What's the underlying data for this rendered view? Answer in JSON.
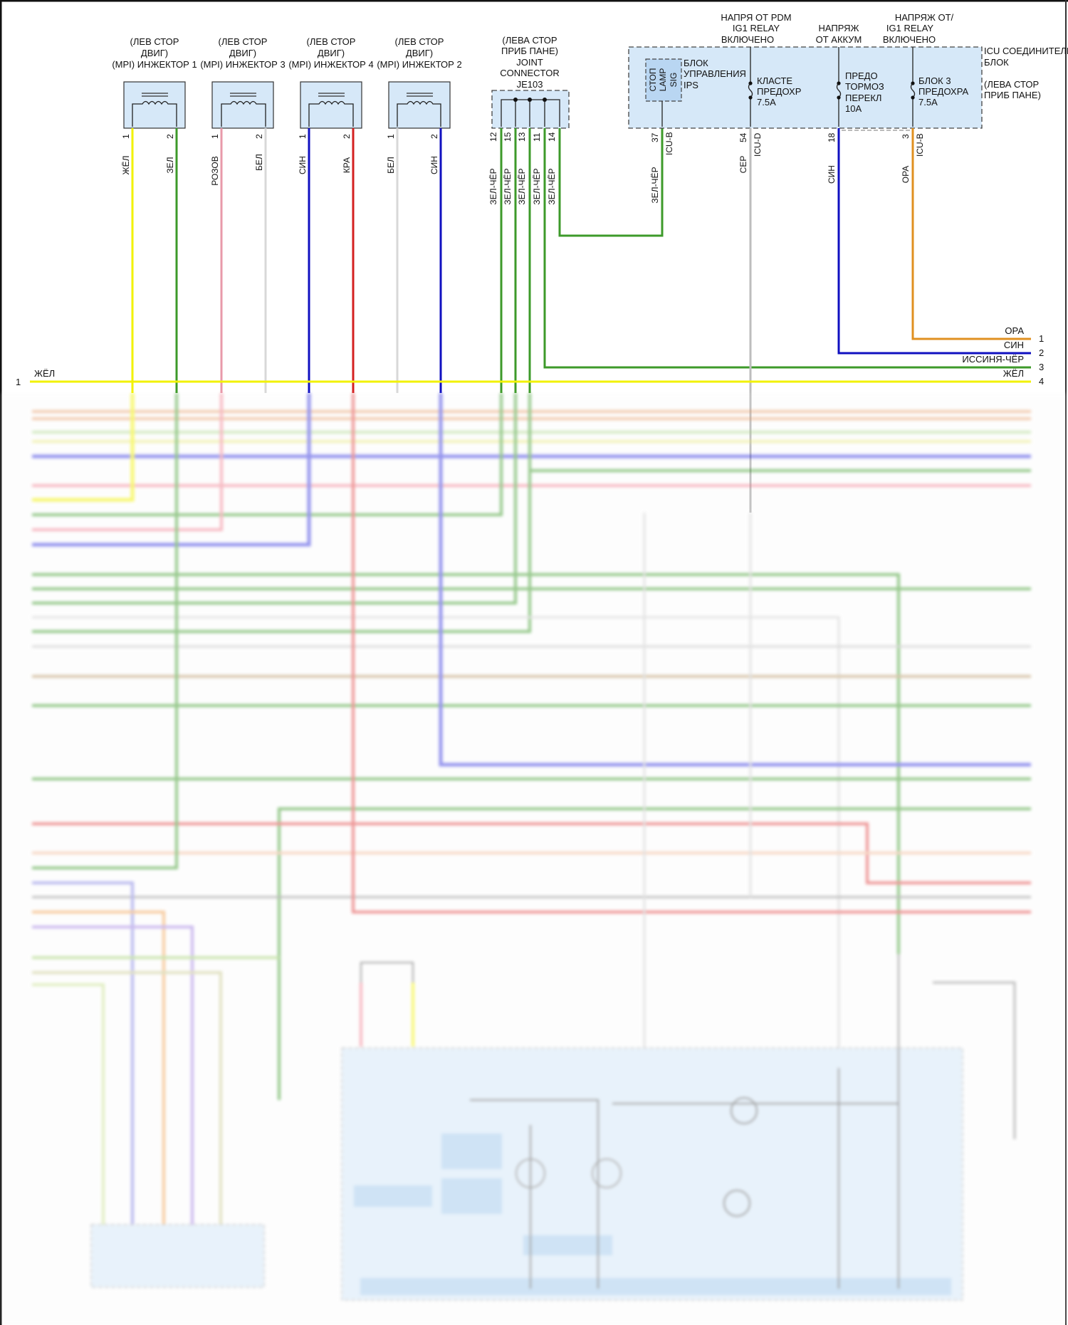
{
  "injectors": [
    {
      "lines": [
        "(ЛЕВ СТОР",
        "ДВИГ)",
        "(MPI) ИНЖЕКТОР 1"
      ],
      "pins": [
        "1",
        "2"
      ],
      "wires": [
        "ЖЁЛ",
        "ЗЕЛ"
      ]
    },
    {
      "lines": [
        "(ЛЕВ СТОР",
        "ДВИГ)",
        "(MPI) ИНЖЕКТОР 3"
      ],
      "pins": [
        "1",
        "2"
      ],
      "wires": [
        "РОЗОВ",
        "БЕЛ"
      ]
    },
    {
      "lines": [
        "(ЛЕВ СТОР",
        "ДВИГ)",
        "(MPI) ИНЖЕКТОР 4"
      ],
      "pins": [
        "1",
        "2"
      ],
      "wires": [
        "СИН",
        "КРА"
      ]
    },
    {
      "lines": [
        "(ЛЕВ СТОР",
        "ДВИГ)",
        "(MPI) ИНЖЕКТОР 2"
      ],
      "pins": [
        "1",
        "2"
      ],
      "wires": [
        "БЕЛ",
        "СИН"
      ]
    }
  ],
  "joint_connector": {
    "lines": [
      "(ЛЕВА СТОР",
      "ПРИБ ПАНЕ)",
      "JOINT",
      "CONNECTOR",
      "JE103"
    ],
    "pins": [
      "12",
      "15",
      "13",
      "11",
      "14"
    ],
    "wires": [
      "ЗЕЛ-ЧЁР",
      "ЗЕЛ-ЧЁР",
      "ЗЕЛ-ЧЁР",
      "ЗЕЛ-ЧЁР",
      "ЗЕЛ-ЧЁР"
    ]
  },
  "icu": {
    "title": [
      "ICU СОЕДИНИТЕЛЬ",
      "БЛОК"
    ],
    "location": [
      "(ЛЕВА СТОР",
      "ПРИБ ПАНЕ)"
    ],
    "stop_lamp": [
      "СТОП",
      "LAMP",
      "SIG"
    ],
    "ips": [
      "БЛОК",
      "УПРАВЛЕНИЯ",
      "IPS"
    ],
    "supplies": [
      [
        "НАПРЯ ОТ PDM",
        "IG1 RELAY",
        "ВКЛЮЧЕНО"
      ],
      [
        "НАПРЯЖ",
        "ОТ АККУМ"
      ],
      [
        "НАПРЯЖ ОТ/",
        "IG1 RELAY",
        "ВКЛЮЧЕНО"
      ]
    ],
    "fuses": [
      [
        "КЛАСТЕ",
        "ПРЕДОХР",
        "7.5А"
      ],
      [
        "ПРЕДО",
        "ТОРМОЗ",
        "ПЕРЕКЛ",
        "10А"
      ],
      [
        "БЛОК 3",
        "ПРЕДОХРА",
        "7.5А"
      ]
    ],
    "pins": [
      {
        "num": "37",
        "connector": "ICU-B",
        "wire": "ЗЕЛ-ЧЁР"
      },
      {
        "num": "54",
        "connector": "ICU-D",
        "wire": "СЕР"
      },
      {
        "num": "18",
        "connector": "",
        "wire": "СИН"
      },
      {
        "num": "3",
        "connector": "ICU-B",
        "wire": "ОРА"
      }
    ]
  },
  "harness": {
    "left": {
      "num": "1",
      "wire": "ЖЁЛ"
    },
    "right": [
      {
        "num": "1",
        "wire": "ОРА"
      },
      {
        "num": "2",
        "wire": "СИН"
      },
      {
        "num": "3",
        "wire": "ИССИНЯ-ЧЁР"
      },
      {
        "num": "4",
        "wire": "ЖЁЛ"
      }
    ]
  },
  "colors": {
    "yellow": "#f2f200",
    "green": "#3d9a2a",
    "pink": "#e89aaa",
    "white": "#d8d8d8",
    "blue": "#1010c0",
    "red": "#d42020",
    "gray": "#bdbdbd",
    "orange": "#e09020",
    "module_fill": "#d6e8f8"
  }
}
